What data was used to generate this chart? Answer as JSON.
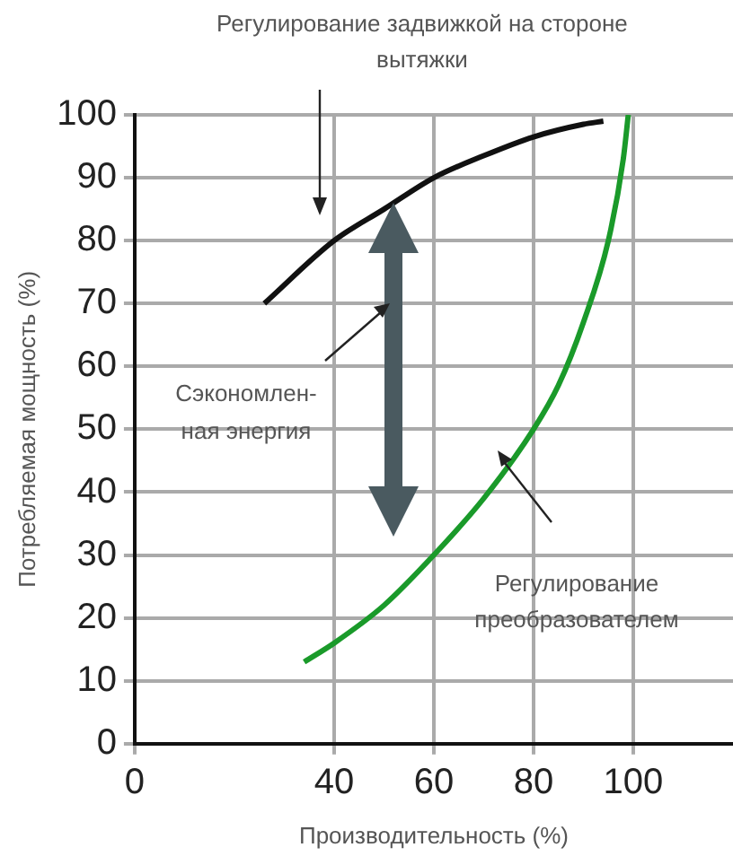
{
  "chart_data": {
    "type": "line",
    "xlabel": "Производительность (%)",
    "ylabel": "Потребляемая мощность (%)",
    "xlim": [
      0,
      120
    ],
    "xticks": [
      0,
      40,
      60,
      80,
      100
    ],
    "ylim": [
      0,
      100
    ],
    "yticks": [
      0,
      10,
      20,
      30,
      40,
      50,
      60,
      70,
      80,
      90,
      100
    ],
    "grid": true,
    "legend": false,
    "series": [
      {
        "name": "Регулирование задвижкой на стороне вытяжки",
        "color": "#111111",
        "x": [
          26,
          40,
          50,
          60,
          70,
          80,
          90,
          94
        ],
        "values": [
          70,
          80,
          85,
          90,
          93.5,
          96.5,
          98.5,
          99
        ]
      },
      {
        "name": "Регулирование преобразователем",
        "color": "#1a9a2a",
        "x": [
          34,
          40,
          50,
          60,
          70,
          80,
          85,
          90,
          95,
          98,
          99
        ],
        "values": [
          13,
          16,
          22,
          30,
          39,
          50,
          57,
          67,
          80,
          93,
          100
        ]
      }
    ],
    "annotations": [
      "Сэкономлен-\nная энергия"
    ]
  }
}
